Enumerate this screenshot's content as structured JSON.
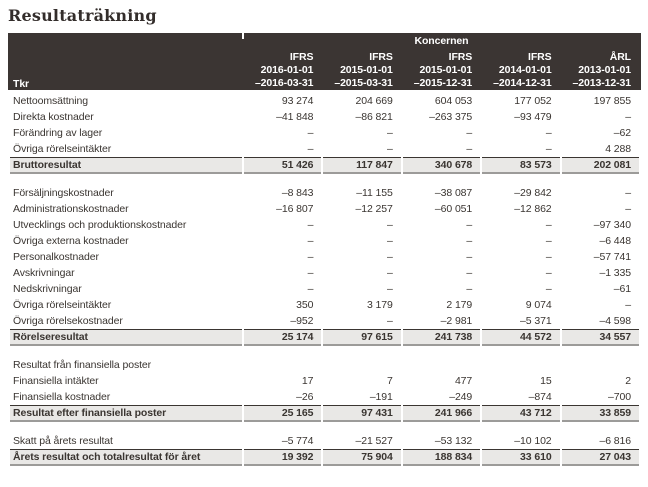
{
  "page_title": "Resultaträkning",
  "colors": {
    "header_bg": "#3b3533",
    "header_text": "#ffffff",
    "body_text": "#3a3531",
    "total_band_bg": "#e9e8e6",
    "total_border_top": "#3a3531",
    "total_border_bottom": "#9c9b99"
  },
  "table": {
    "group_header": "Koncernen",
    "unit_label": "Tkr",
    "columns": [
      {
        "standard": "IFRS",
        "from": "2016-01-01",
        "to": "–2016-03-31"
      },
      {
        "standard": "IFRS",
        "from": "2015-01-01",
        "to": "–2015-03-31"
      },
      {
        "standard": "IFRS",
        "from": "2015-01-01",
        "to": "–2015-12-31"
      },
      {
        "standard": "IFRS",
        "from": "2014-01-01",
        "to": "–2014-12-31"
      },
      {
        "standard": "ÅRL",
        "from": "2013-01-01",
        "to": "–2013-12-31"
      }
    ],
    "rows": [
      {
        "type": "data",
        "label": "Nettoomsättning",
        "values": [
          "93 274",
          "204 669",
          "604 053",
          "177 052",
          "197 855"
        ]
      },
      {
        "type": "data",
        "label": "Direkta kostnader",
        "values": [
          "–41 848",
          "–86 821",
          "–263 375",
          "–93 479",
          "–"
        ]
      },
      {
        "type": "data",
        "label": "Förändring av lager",
        "values": [
          "–",
          "–",
          "–",
          "–",
          "–62"
        ]
      },
      {
        "type": "data",
        "label": "Övriga rörelseintäkter",
        "values": [
          "–",
          "–",
          "–",
          "–",
          "4 288"
        ]
      },
      {
        "type": "total",
        "label": "Bruttoresultat",
        "values": [
          "51 426",
          "117 847",
          "340 678",
          "83 573",
          "202 081"
        ]
      },
      {
        "type": "spacer"
      },
      {
        "type": "data",
        "label": "Försäljningskostnader",
        "values": [
          "–8 843",
          "–11 155",
          "–38 087",
          "–29 842",
          "–"
        ]
      },
      {
        "type": "data",
        "label": "Administrationskostnader",
        "values": [
          "–16 807",
          "–12 257",
          "–60 051",
          "–12 862",
          "–"
        ]
      },
      {
        "type": "data",
        "label": "Utvecklings och produktionskostnader",
        "values": [
          "–",
          "–",
          "–",
          "–",
          "–97 340"
        ]
      },
      {
        "type": "data",
        "label": "Övriga externa kostnader",
        "values": [
          "–",
          "–",
          "–",
          "–",
          "–6 448"
        ]
      },
      {
        "type": "data",
        "label": "Personalkostnader",
        "values": [
          "–",
          "–",
          "–",
          "–",
          "–57 741"
        ]
      },
      {
        "type": "data",
        "label": "Avskrivningar",
        "values": [
          "–",
          "–",
          "–",
          "–",
          "–1 335"
        ]
      },
      {
        "type": "data",
        "label": "Nedskrivningar",
        "values": [
          "–",
          "–",
          "–",
          "–",
          "–61"
        ]
      },
      {
        "type": "data",
        "label": "Övriga rörelseintäkter",
        "values": [
          "350",
          "3 179",
          "2 179",
          "9 074",
          "–"
        ]
      },
      {
        "type": "data",
        "label": "Övriga rörelsekostnader",
        "values": [
          "–952",
          "–",
          "–2 981",
          "–5 371",
          "–4 598"
        ]
      },
      {
        "type": "total",
        "label": "Rörelseresultat",
        "values": [
          "25 174",
          "97 615",
          "241 738",
          "44 572",
          "34 557"
        ]
      },
      {
        "type": "spacer"
      },
      {
        "type": "section",
        "label": "Resultat från finansiella poster",
        "values": [
          "",
          "",
          "",
          "",
          ""
        ]
      },
      {
        "type": "data",
        "label": "Finansiella intäkter",
        "values": [
          "17",
          "7",
          "477",
          "15",
          "2"
        ]
      },
      {
        "type": "data",
        "label": "Finansiella kostnader",
        "values": [
          "–26",
          "–191",
          "–249",
          "–874",
          "–700"
        ]
      },
      {
        "type": "total",
        "label": "Resultat efter finansiella poster",
        "values": [
          "25 165",
          "97 431",
          "241 966",
          "43 712",
          "33 859"
        ]
      },
      {
        "type": "spacer"
      },
      {
        "type": "data",
        "label": "Skatt på årets resultat",
        "values": [
          "–5 774",
          "–21 527",
          "–53 132",
          "–10 102",
          "–6 816"
        ]
      },
      {
        "type": "total",
        "label": "Årets resultat och totalresultat för året",
        "values": [
          "19 392",
          "75 904",
          "188 834",
          "33 610",
          "27 043"
        ]
      }
    ]
  }
}
